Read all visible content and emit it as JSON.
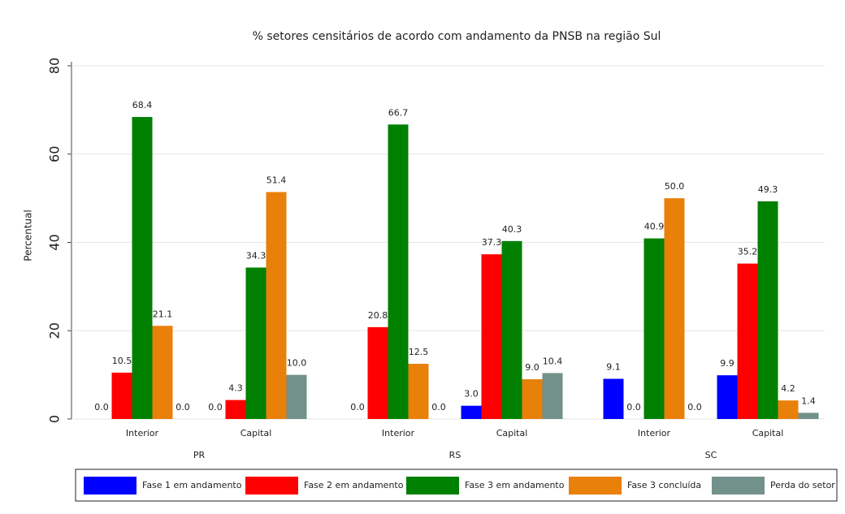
{
  "chart_data": {
    "type": "bar",
    "title": "% setores censitários de acordo com andamento da PNSB na região Sul",
    "y_label": "Percentual",
    "categories": [
      "Interior",
      "Capital",
      "Interior",
      "Capital",
      "Interior",
      "Capital"
    ],
    "category_groups": [
      "PR",
      "RS",
      "SC"
    ],
    "series": [
      {
        "name": "Fase 1 em andamento",
        "color": "#0000ff",
        "values": [
          0,
          0,
          0,
          3,
          9.1,
          9.9
        ],
        "value_labels": [
          "0.0",
          "0.0",
          "0.0",
          "3.0",
          "9.1",
          "9.9"
        ]
      },
      {
        "name": "Fase 2 em andamento",
        "color": "#ff0000",
        "values": [
          10.5,
          4.3,
          20.8,
          37.3,
          0,
          35.2
        ],
        "value_labels": [
          "10.5",
          "4.3",
          "20.8",
          "37.3",
          "0.0",
          "35.2"
        ]
      },
      {
        "name": "Fase 3 em andamento",
        "color": "#008000",
        "values": [
          68.4,
          34.3,
          66.7,
          40.3,
          40.9,
          49.3
        ],
        "value_labels": [
          "68.4",
          "34.3",
          "66.7",
          "40.3",
          "40.9",
          "49.3"
        ]
      },
      {
        "name": "Fase 3 concluída",
        "color": "#e8800a",
        "values": [
          21.1,
          51.4,
          12.5,
          9,
          50,
          4.2
        ],
        "value_labels": [
          "21.1",
          "51.4",
          "12.5",
          "9.0",
          "50.0",
          "4.2"
        ]
      },
      {
        "name": "Perda do setor",
        "color": "#72918a",
        "values": [
          0,
          10,
          0,
          10.4,
          0,
          1.4
        ],
        "value_labels": [
          "0.0",
          "10.0",
          "0.0",
          "10.4",
          "0.0",
          "1.4"
        ]
      }
    ],
    "ylim": [
      0,
      80
    ],
    "yticks": [
      0,
      20,
      40,
      60,
      80
    ],
    "grid": true
  }
}
